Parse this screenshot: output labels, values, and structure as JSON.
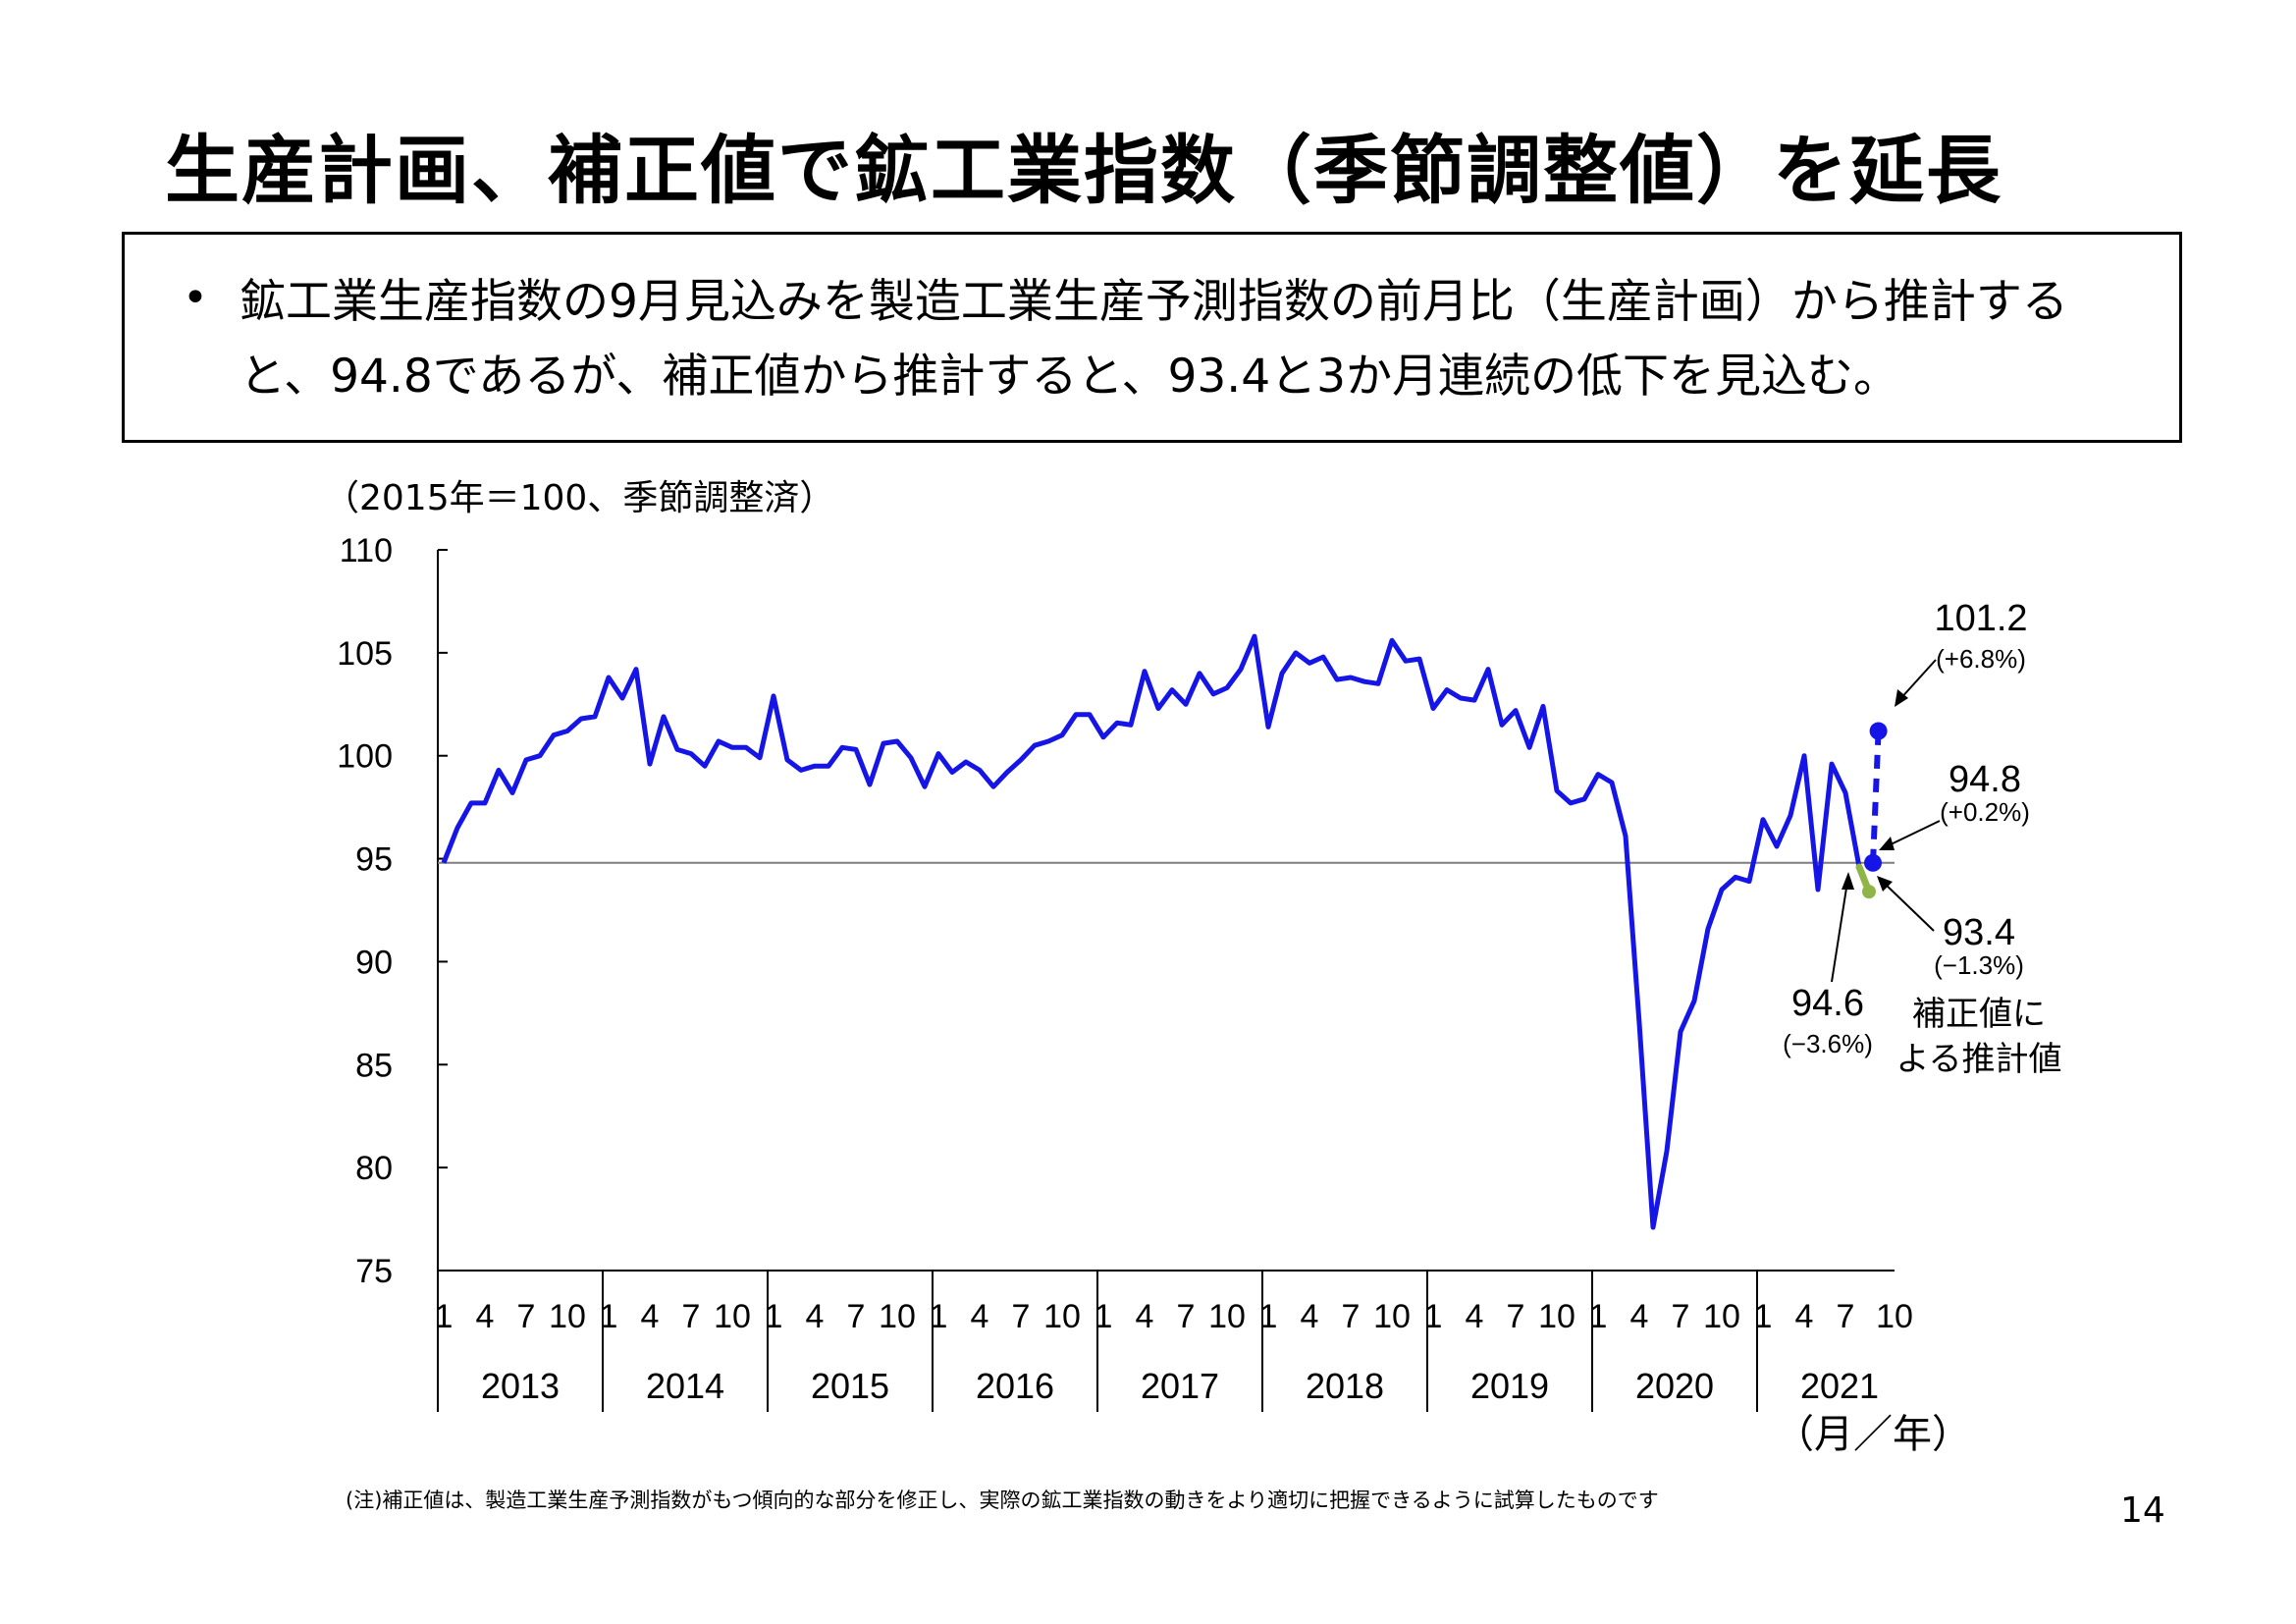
{
  "title": "生産計画、補正値で鉱工業指数（季節調整値）を延長",
  "summary": {
    "bullet": "•",
    "text": "鉱工業生産指数の9月見込みを製造工業生産予測指数の前月比（生産計画）から推計すると、94.8であるが、補正値から推計すると、93.4と3か月連続の低下を見込む。"
  },
  "unit_label": "（2015年＝100、季節調整済）",
  "x_axis_unit": "（月／年）",
  "footnote": "(注)補正値は、製造工業生産予測指数がもつ傾向的な部分を修正し、実際の鉱工業指数の動きをより適切に把握できるように試算したものです",
  "page_number": "14",
  "colors": {
    "main_line": "#1515e8",
    "correction": "#8fb548",
    "reference_line": "#7f7f7f",
    "axis": "#000000"
  },
  "chart_data": {
    "type": "line",
    "ylim": [
      75,
      110
    ],
    "yticks": [
      "75",
      "80",
      "85",
      "90",
      "95",
      "100",
      "105",
      "110"
    ],
    "reference_value": 94.8,
    "month_ticks": [
      "1",
      "4",
      "7",
      "10"
    ],
    "years": [
      "2013",
      "2014",
      "2015",
      "2016",
      "2017",
      "2018",
      "2019",
      "2020",
      "2021"
    ],
    "x_end_month_label": "10",
    "series": [
      {
        "name": "",
        "start": "2013-01",
        "values": [
          94.8,
          96.5,
          97.7,
          97.7,
          99.3,
          98.2,
          99.8,
          100.0,
          101.0,
          101.2,
          101.8,
          101.9,
          103.8,
          102.8,
          104.2,
          99.6,
          101.9,
          100.3,
          100.1,
          99.5,
          100.7,
          100.4,
          100.4,
          99.9,
          102.9,
          99.8,
          99.3,
          99.5,
          99.5,
          100.4,
          100.3,
          98.6,
          100.6,
          100.7,
          99.9,
          98.5,
          100.1,
          99.2,
          99.7,
          99.3,
          98.5,
          99.2,
          99.8,
          100.5,
          100.7,
          101.0,
          102.0,
          102.0,
          100.9,
          101.6,
          101.5,
          104.1,
          102.3,
          103.2,
          102.5,
          104.0,
          103.0,
          103.3,
          104.2,
          105.8,
          101.4,
          104.0,
          105.0,
          104.5,
          104.8,
          103.7,
          103.8,
          103.6,
          103.5,
          105.6,
          104.6,
          104.7,
          102.3,
          103.2,
          102.8,
          102.7,
          104.2,
          101.5,
          102.2,
          100.4,
          102.4,
          98.3,
          97.7,
          97.9,
          99.1,
          98.7,
          96.1,
          87.0,
          77.1,
          80.8,
          86.6,
          88.1,
          91.6,
          93.5,
          94.1,
          93.9,
          96.9,
          95.6,
          97.1,
          100.0,
          93.5,
          99.6,
          98.2,
          94.6
        ]
      }
    ],
    "projections": [
      {
        "name": "生産計画",
        "from": "2021-08",
        "values": [
          94.8,
          101.2
        ],
        "style": "dashed"
      },
      {
        "name": "補正値による推計値",
        "from": "2021-08",
        "values": [
          93.4
        ]
      }
    ],
    "annotations": [
      {
        "value": "101.2",
        "change": "(+6.8%)"
      },
      {
        "value": "94.8",
        "change": "(+0.2%)"
      },
      {
        "value": "93.4",
        "change": "(−1.3%)",
        "note_line1": "補正値に",
        "note_line2": "よる推計値"
      },
      {
        "value": "94.6",
        "change": "(−3.6%)"
      }
    ]
  }
}
